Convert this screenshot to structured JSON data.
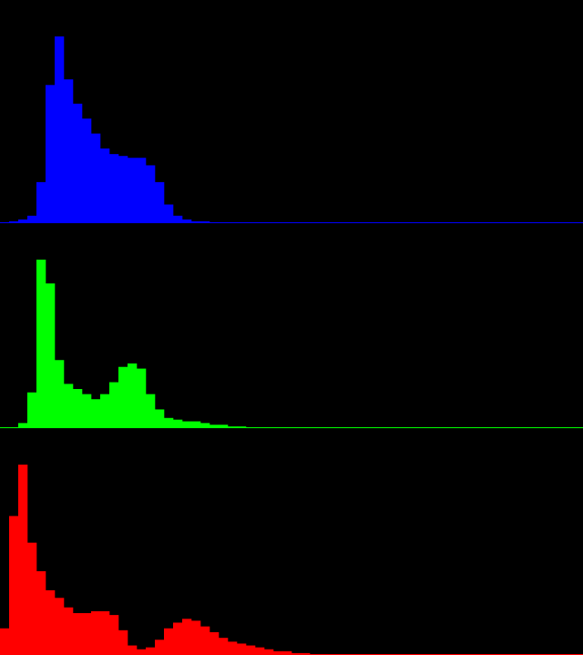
{
  "chart_data": [
    {
      "type": "bar",
      "title": "",
      "xlabel": "",
      "ylabel": "",
      "legend": "none",
      "series": [
        {
          "name": "blue",
          "color": "#0000ff",
          "values": [
            0,
            0.01,
            0.02,
            0.04,
            0.22,
            0.74,
            1.0,
            0.77,
            0.64,
            0.56,
            0.48,
            0.4,
            0.37,
            0.36,
            0.35,
            0.35,
            0.31,
            0.22,
            0.1,
            0.04,
            0.02,
            0.01,
            0.01,
            0.005,
            0,
            0,
            0,
            0,
            0,
            0,
            0,
            0,
            0,
            0,
            0,
            0,
            0,
            0,
            0,
            0,
            0,
            0,
            0,
            0,
            0,
            0,
            0,
            0,
            0,
            0,
            0,
            0,
            0,
            0,
            0,
            0,
            0,
            0,
            0,
            0,
            0,
            0,
            0,
            0
          ]
        }
      ]
    },
    {
      "type": "bar",
      "title": "",
      "xlabel": "",
      "ylabel": "",
      "legend": "none",
      "series": [
        {
          "name": "green",
          "color": "#00ff00",
          "values": [
            0,
            0,
            0.03,
            0.21,
            0.99,
            0.85,
            0.4,
            0.26,
            0.23,
            0.2,
            0.17,
            0.2,
            0.27,
            0.36,
            0.38,
            0.35,
            0.2,
            0.11,
            0.06,
            0.05,
            0.04,
            0.04,
            0.03,
            0.02,
            0.02,
            0.01,
            0.01,
            0.005,
            0.005,
            0.005,
            0,
            0,
            0,
            0,
            0,
            0,
            0,
            0,
            0,
            0,
            0,
            0,
            0,
            0,
            0,
            0,
            0,
            0,
            0,
            0,
            0,
            0,
            0,
            0,
            0,
            0,
            0,
            0,
            0,
            0,
            0,
            0,
            0,
            0
          ]
        }
      ]
    },
    {
      "type": "bar",
      "title": "",
      "xlabel": "",
      "ylabel": "",
      "legend": "none",
      "series": [
        {
          "name": "red",
          "color": "#ff0000",
          "values": [
            0.14,
            0.73,
            1.0,
            0.59,
            0.44,
            0.34,
            0.3,
            0.25,
            0.22,
            0.22,
            0.23,
            0.23,
            0.21,
            0.13,
            0.05,
            0.03,
            0.04,
            0.08,
            0.14,
            0.17,
            0.19,
            0.18,
            0.15,
            0.12,
            0.09,
            0.07,
            0.06,
            0.05,
            0.04,
            0.03,
            0.02,
            0.02,
            0.01,
            0.01,
            0.005,
            0.005,
            0,
            0,
            0,
            0,
            0,
            0,
            0,
            0,
            0,
            0,
            0,
            0,
            0,
            0,
            0,
            0,
            0,
            0,
            0,
            0,
            0,
            0,
            0,
            0,
            0,
            0,
            0,
            0
          ]
        }
      ]
    }
  ]
}
